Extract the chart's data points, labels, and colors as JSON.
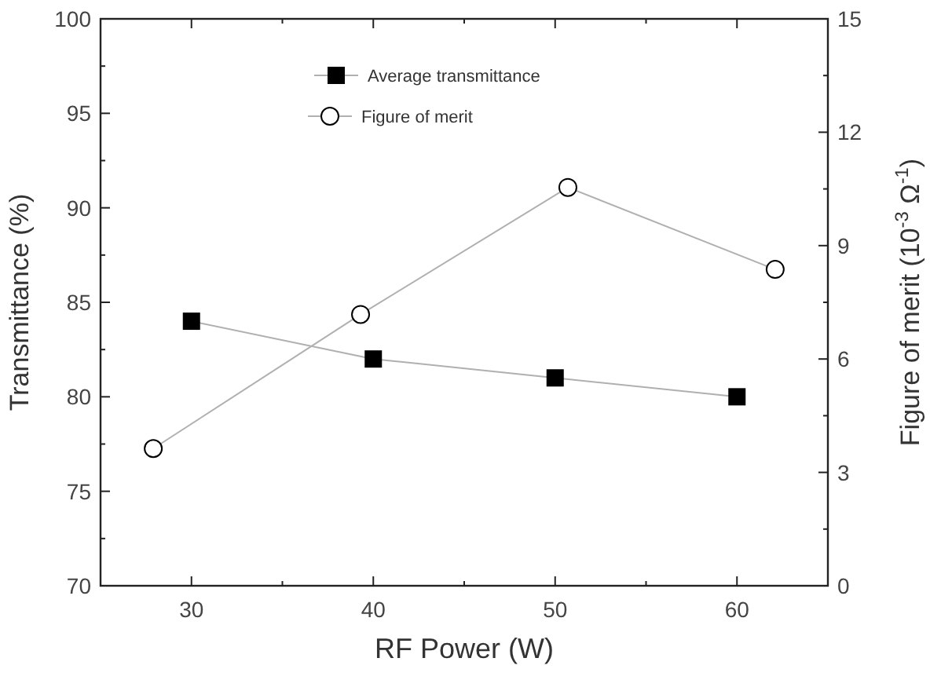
{
  "chart_data": {
    "type": "line",
    "xlabel": "RF Power (W)",
    "ylabel": "Transmittance (%)",
    "y2label": "Figure of merit (10$^{-3}$ Ω$^{-1}$)",
    "xlim": [
      25,
      65
    ],
    "xticks": [
      30,
      {
        "value": 35,
        "label": null
      },
      40,
      {
        "value": 45,
        "label": null
      },
      50,
      {
        "value": 55,
        "label": null
      },
      60
    ],
    "ylim": [
      70,
      100
    ],
    "yticks": [
      70,
      {
        "value": 72.5,
        "label": null
      },
      75,
      {
        "value": 77.5,
        "label": null
      },
      80,
      {
        "value": 82.5,
        "label": null
      },
      85,
      {
        "value": 87.5,
        "label": null
      },
      90,
      {
        "value": 92.5,
        "label": null
      },
      95,
      {
        "value": 97.5,
        "label": null
      },
      100
    ],
    "y2lim": [
      0,
      15
    ],
    "y2ticks": [
      0,
      {
        "value": 1.5,
        "label": null
      },
      3,
      {
        "value": 4.5,
        "label": null
      },
      6,
      {
        "value": 7.5,
        "label": null
      },
      9,
      {
        "value": 10.5,
        "label": null
      },
      12,
      {
        "value": 13.5,
        "label": null
      },
      15
    ],
    "legend": "top",
    "grid": false,
    "line_style": "solid",
    "series": [
      {
        "name": "Average transmittance",
        "color": "#000000",
        "marker": "square",
        "x": [
          30,
          40,
          50,
          60
        ],
        "values": [
          84,
          82,
          81,
          80
        ]
      },
      {
        "name": "Figure of merit",
        "color": "#000000",
        "marker": "circle",
        "axis": "y2",
        "x": [
          27.9,
          39.3,
          50.7,
          62.1
        ],
        "values": [
          3.63,
          7.18,
          10.54,
          8.37
        ]
      }
    ]
  }
}
